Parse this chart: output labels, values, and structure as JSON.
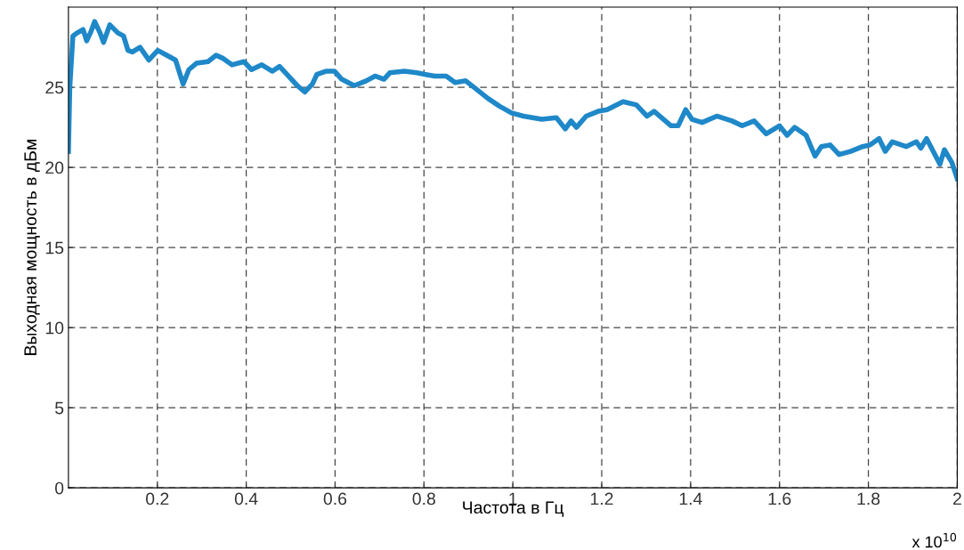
{
  "chart_data": {
    "type": "line",
    "xlabel": "Частота в Гц",
    "ylabel": "Выходная мощность в дБм",
    "annotations": [
      "x 10$^{10}$"
    ],
    "xlim": [
      0,
      2
    ],
    "xticks": [
      0.2,
      0.4,
      0.6,
      0.8,
      1,
      1.2,
      1.4,
      1.6,
      1.8,
      2
    ],
    "ylim": [
      0,
      30
    ],
    "yticks": [
      0,
      5,
      10,
      15,
      20,
      25
    ],
    "grid": true,
    "line_style": "solid",
    "marker": "none",
    "series": [
      {
        "color": "#1f88c8",
        "x": [
          0.0,
          0.003,
          0.01,
          0.02,
          0.033,
          0.041,
          0.051,
          0.059,
          0.071,
          0.079,
          0.093,
          0.111,
          0.124,
          0.134,
          0.144,
          0.161,
          0.181,
          0.201,
          0.221,
          0.241,
          0.258,
          0.271,
          0.288,
          0.314,
          0.332,
          0.348,
          0.368,
          0.395,
          0.412,
          0.435,
          0.459,
          0.475,
          0.495,
          0.515,
          0.532,
          0.549,
          0.559,
          0.579,
          0.599,
          0.615,
          0.643,
          0.67,
          0.69,
          0.71,
          0.723,
          0.756,
          0.784,
          0.804,
          0.824,
          0.85,
          0.87,
          0.894,
          0.917,
          0.944,
          0.971,
          0.997,
          1.024,
          1.065,
          1.098,
          1.118,
          1.131,
          1.143,
          1.165,
          1.192,
          1.212,
          1.248,
          1.278,
          1.302,
          1.318,
          1.356,
          1.372,
          1.389,
          1.403,
          1.426,
          1.459,
          1.493,
          1.516,
          1.543,
          1.57,
          1.6,
          1.617,
          1.634,
          1.66,
          1.68,
          1.694,
          1.714,
          1.734,
          1.76,
          1.787,
          1.804,
          1.824,
          1.838,
          1.854,
          1.885,
          1.908,
          1.918,
          1.931,
          1.961,
          1.971,
          1.988,
          2.0
        ],
        "values": [
          21.0,
          25.0,
          28.2,
          28.4,
          28.6,
          27.9,
          28.5,
          29.1,
          28.4,
          27.8,
          28.9,
          28.4,
          28.2,
          27.3,
          27.2,
          27.5,
          26.7,
          27.3,
          27.0,
          26.7,
          25.2,
          26.1,
          26.5,
          26.6,
          27.0,
          26.8,
          26.4,
          26.6,
          26.1,
          26.4,
          26.0,
          26.3,
          25.7,
          25.1,
          24.7,
          25.2,
          25.8,
          26.0,
          26.0,
          25.5,
          25.1,
          25.4,
          25.7,
          25.5,
          25.9,
          26.0,
          25.9,
          25.8,
          25.7,
          25.7,
          25.3,
          25.4,
          24.9,
          24.3,
          23.8,
          23.4,
          23.2,
          23.0,
          23.1,
          22.4,
          22.9,
          22.5,
          23.2,
          23.5,
          23.6,
          24.1,
          23.9,
          23.2,
          23.5,
          22.6,
          22.6,
          23.6,
          23.0,
          22.8,
          23.2,
          22.9,
          22.6,
          22.9,
          22.1,
          22.6,
          22.0,
          22.5,
          22.0,
          20.7,
          21.3,
          21.4,
          20.8,
          21.0,
          21.3,
          21.4,
          21.8,
          21.0,
          21.6,
          21.3,
          21.6,
          21.2,
          21.8,
          20.2,
          21.1,
          20.3,
          19.3
        ]
      }
    ]
  }
}
